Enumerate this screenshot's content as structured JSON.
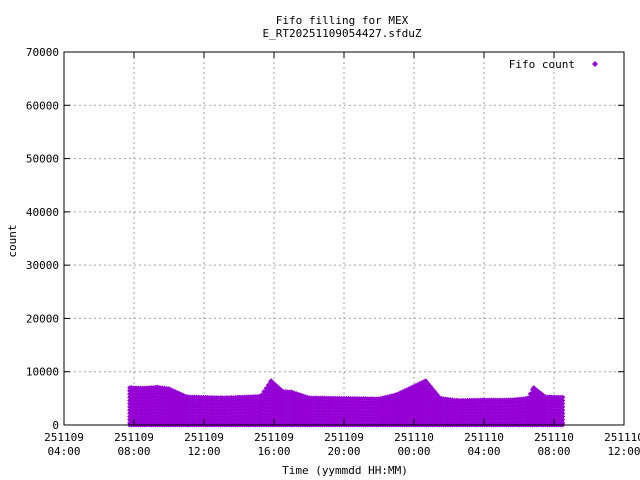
{
  "chart_data": {
    "type": "scatter",
    "title_line1": "Fifo filling for MEX",
    "title_line2": "E_RT20251109054427.sfduZ",
    "xlabel": "Time (yymmdd HH:MM)",
    "ylabel": "count",
    "ylim": [
      0,
      70000
    ],
    "yticks": [
      0,
      10000,
      20000,
      30000,
      40000,
      50000,
      60000,
      70000
    ],
    "xlim": [
      "2025-11-09 04:00",
      "2025-11-10 12:00"
    ],
    "xticks": [
      {
        "date": "251109",
        "time": "04:00"
      },
      {
        "date": "251109",
        "time": "08:00"
      },
      {
        "date": "251109",
        "time": "12:00"
      },
      {
        "date": "251109",
        "time": "16:00"
      },
      {
        "date": "251109",
        "time": "20:00"
      },
      {
        "date": "251110",
        "time": "00:00"
      },
      {
        "date": "251110",
        "time": "04:00"
      },
      {
        "date": "251110",
        "time": "08:00"
      },
      {
        "date": "251110",
        "time": "12:00"
      }
    ],
    "grid": true,
    "legend_position": "top-right",
    "series": [
      {
        "name": "Fifo count",
        "color": "#9400d3",
        "marker": "diamond",
        "x_range": [
          "2025-11-09 07:45",
          "2025-11-10 08:30"
        ],
        "points": [
          [
            "2025-11-09 07:50",
            7000
          ],
          [
            "2025-11-09 08:30",
            6900
          ],
          [
            "2025-11-09 09:20",
            7100
          ],
          [
            "2025-11-09 10:00",
            6800
          ],
          [
            "2025-11-09 11:00",
            5300
          ],
          [
            "2025-11-09 13:00",
            5100
          ],
          [
            "2025-11-09 14:00",
            5200
          ],
          [
            "2025-11-09 15:15",
            5400
          ],
          [
            "2025-11-09 15:50",
            8300
          ],
          [
            "2025-11-09 16:30",
            6300
          ],
          [
            "2025-11-09 17:00",
            6200
          ],
          [
            "2025-11-09 18:00",
            5100
          ],
          [
            "2025-11-09 20:00",
            5000
          ],
          [
            "2025-11-09 22:00",
            4900
          ],
          [
            "2025-11-09 23:00",
            5700
          ],
          [
            "2025-11-10 00:40",
            8300
          ],
          [
            "2025-11-10 01:30",
            5000
          ],
          [
            "2025-11-10 02:30",
            4600
          ],
          [
            "2025-11-10 04:00",
            4700
          ],
          [
            "2025-11-10 05:30",
            4700
          ],
          [
            "2025-11-10 06:30",
            5000
          ],
          [
            "2025-11-10 06:50",
            7000
          ],
          [
            "2025-11-10 07:30",
            5300
          ],
          [
            "2025-11-10 08:30",
            5200
          ]
        ]
      }
    ]
  }
}
